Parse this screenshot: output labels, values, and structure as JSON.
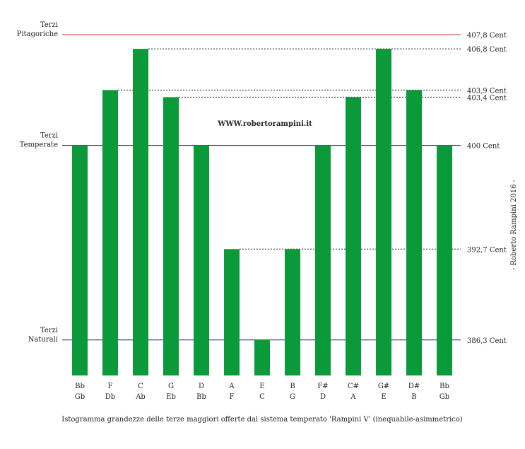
{
  "chart_data": {
    "type": "bar",
    "bar_color": "#0a9a3a",
    "categories": [
      {
        "top": "Bb",
        "bottom": "Gb"
      },
      {
        "top": "F",
        "bottom": "Db"
      },
      {
        "top": "C",
        "bottom": "Ab"
      },
      {
        "top": "G",
        "bottom": "Eb"
      },
      {
        "top": "D",
        "bottom": "Bb"
      },
      {
        "top": "A",
        "bottom": "F"
      },
      {
        "top": "E",
        "bottom": "C"
      },
      {
        "top": "B",
        "bottom": "G"
      },
      {
        "top": "F#",
        "bottom": "D"
      },
      {
        "top": "C#",
        "bottom": "A"
      },
      {
        "top": "G#",
        "bottom": "E"
      },
      {
        "top": "D#",
        "bottom": "B"
      },
      {
        "top": "Bb",
        "bottom": "Gb"
      }
    ],
    "values": [
      400,
      403.9,
      406.8,
      403.4,
      400,
      392.7,
      386.3,
      392.7,
      400,
      403.4,
      406.8,
      403.9,
      400
    ],
    "y_range": [
      383.8,
      407.8
    ],
    "reference_lines": [
      {
        "value": 407.8,
        "left_label": [
          "Terzi",
          "Pitagoriche"
        ],
        "right_label": "407,8 Cent",
        "color": "#c0392b",
        "style": "solid"
      },
      {
        "value": 406.8,
        "right_label": "406,8 Cent",
        "color": "#222222",
        "style": "dotted"
      },
      {
        "value": 403.9,
        "right_label": "403,9 Cent",
        "color": "#222222",
        "style": "dotted"
      },
      {
        "value": 403.4,
        "right_label": "403,4 Cent",
        "color": "#222222",
        "style": "dotted"
      },
      {
        "value": 400,
        "left_label": [
          "Terzi",
          "Temperate"
        ],
        "right_label": "400 Cent",
        "color": "#222222",
        "style": "solid"
      },
      {
        "value": 392.7,
        "right_label": "392,7 Cent",
        "color": "#222222",
        "style": "dotted"
      },
      {
        "value": 386.3,
        "left_label": [
          "Terzi",
          "Naturali"
        ],
        "right_label": "386,3 Cent",
        "color": "#1a237e",
        "style": "solid"
      }
    ],
    "watermark": "WWW.robertorampini.it",
    "side_credit": "- Roberto Rampini 2016 -",
    "caption": "Istogramma grandezze delle terze maggiori offerte dal sistema temperato 'Rampini V' (inequabile-asimmetrico)"
  }
}
